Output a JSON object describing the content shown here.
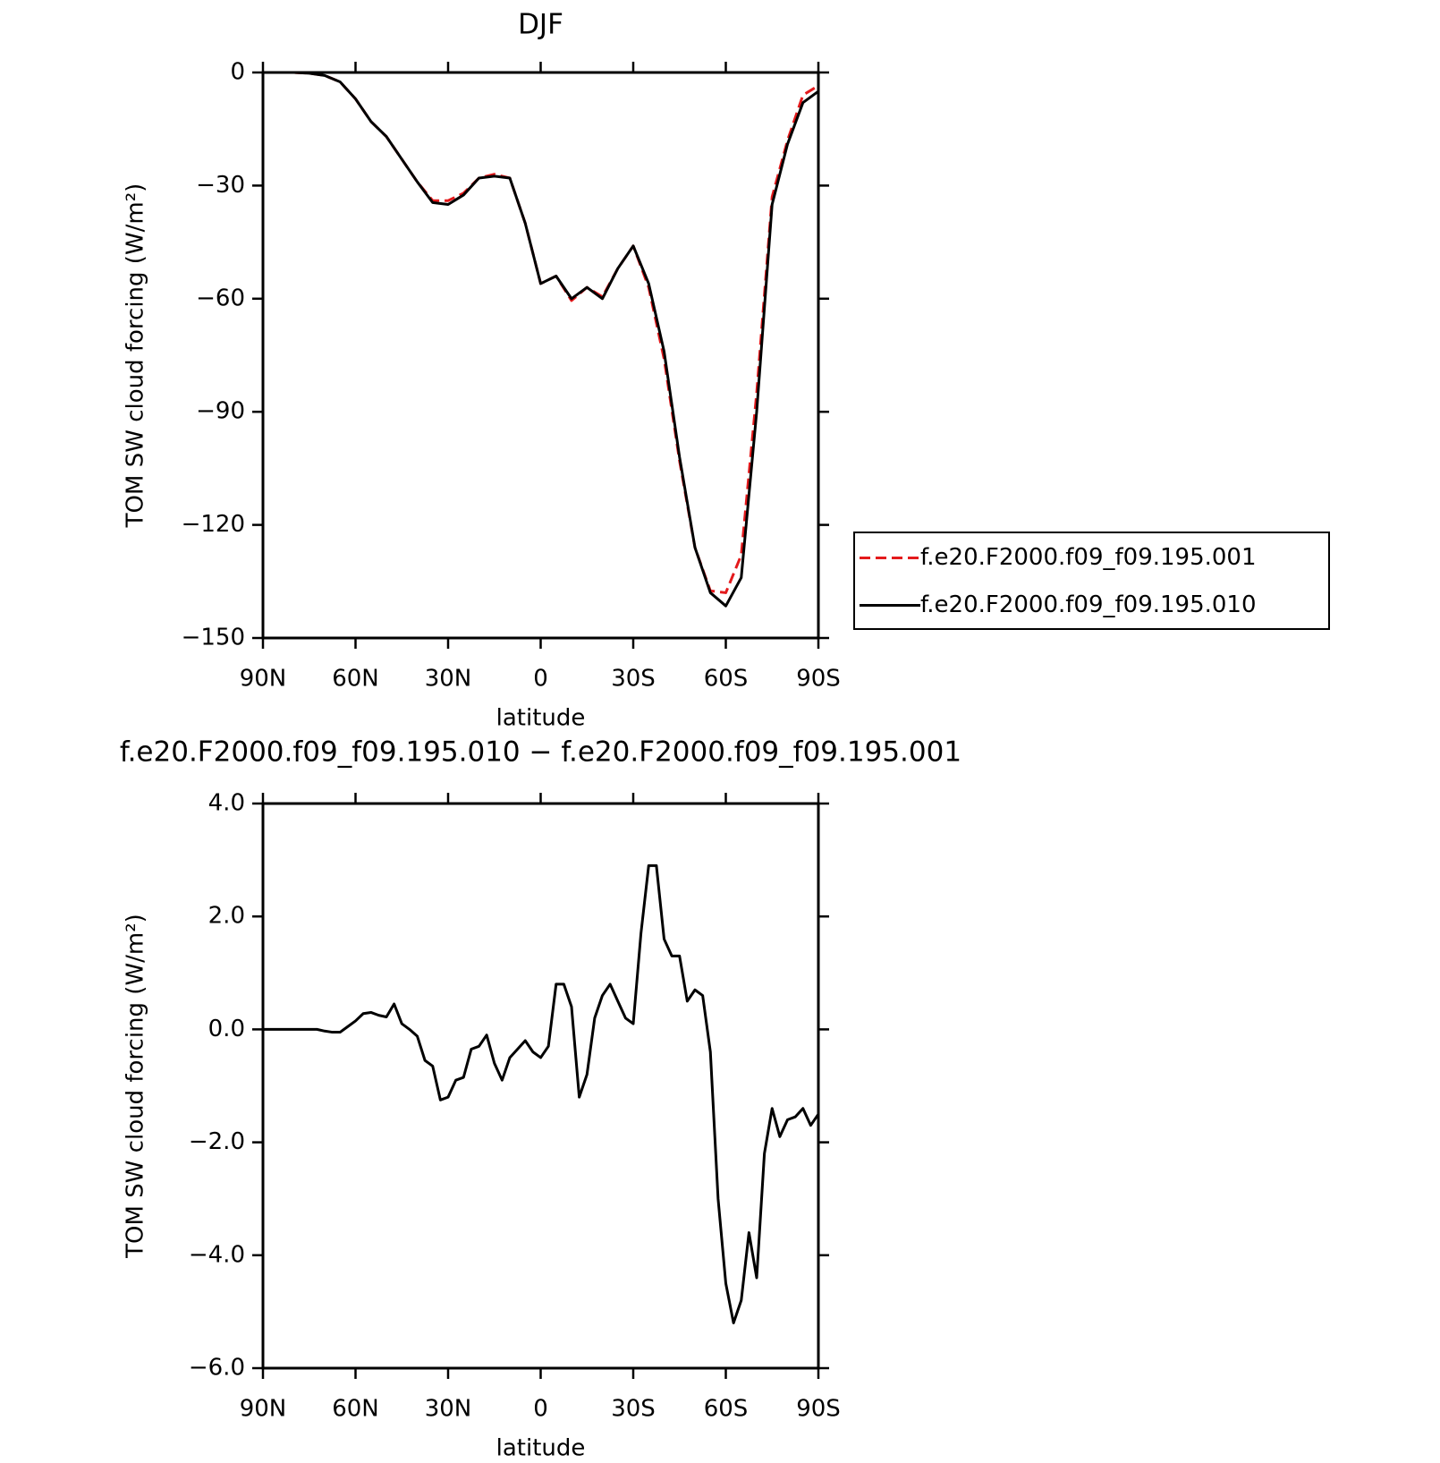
{
  "chart_data": [
    {
      "type": "line",
      "title": "DJF",
      "xlabel": "latitude",
      "ylabel": "TOM SW cloud forcing (W/m²)",
      "x": [
        90,
        85,
        80,
        75,
        70,
        65,
        60,
        55,
        50,
        45,
        40,
        35,
        30,
        25,
        20,
        15,
        10,
        5,
        0,
        -5,
        -10,
        -15,
        -20,
        -25,
        -30,
        -35,
        -40,
        -45,
        -50,
        -55,
        -60,
        -65,
        -70,
        -75,
        -80,
        -85,
        -90
      ],
      "series": [
        {
          "name": "f.e20.F2000.f09_f09.195.001",
          "color": "#e41a1c",
          "dash": true,
          "values": [
            0,
            0,
            0,
            -0.2,
            -0.8,
            -2.5,
            -7,
            -13,
            -17,
            -23,
            -29,
            -34,
            -34,
            -32,
            -28,
            -27,
            -28,
            -40,
            -56,
            -54,
            -60.5,
            -57,
            -59.5,
            -52,
            -46,
            -57,
            -76,
            -103,
            -126,
            -137.5,
            -138,
            -128,
            -85,
            -33,
            -18,
            -6,
            -3.5
          ]
        },
        {
          "name": "f.e20.F2000.f09_f09.195.010",
          "color": "#000000",
          "dash": false,
          "values": [
            0,
            0,
            0,
            -0.2,
            -0.8,
            -2.5,
            -7,
            -13,
            -17,
            -23,
            -29,
            -34.5,
            -35,
            -32.5,
            -28,
            -27.5,
            -28,
            -40,
            -56,
            -54,
            -60,
            -57,
            -60,
            -52,
            -46,
            -56,
            -74,
            -102,
            -126,
            -138,
            -141.5,
            -134,
            -90,
            -35,
            -19,
            -8,
            -5
          ]
        }
      ],
      "xlim": [
        90,
        -90
      ],
      "xticks": [
        {
          "value": 90,
          "label": "90N"
        },
        {
          "value": 60,
          "label": "60N"
        },
        {
          "value": 30,
          "label": "30N"
        },
        0,
        {
          "value": -30,
          "label": "30S"
        },
        {
          "value": -60,
          "label": "60S"
        },
        {
          "value": -90,
          "label": "90S"
        }
      ],
      "ylim": [
        -150,
        0
      ],
      "yticks": [
        0,
        {
          "value": -30,
          "label": "−30"
        },
        {
          "value": -60,
          "label": "−60"
        },
        {
          "value": -90,
          "label": "−90"
        },
        {
          "value": -120,
          "label": "−120"
        },
        {
          "value": -150,
          "label": "−150"
        }
      ],
      "legend": "right"
    },
    {
      "type": "line",
      "title": "f.e20.F2000.f09_f09.195.010 − f.e20.F2000.f09_f09.195.001",
      "xlabel": "latitude",
      "ylabel": "TOM SW cloud forcing (W/m²)",
      "x": [
        90,
        87.5,
        85,
        82.5,
        80,
        77.5,
        75,
        72.5,
        70,
        67.5,
        65,
        62.5,
        60,
        57.5,
        55,
        52.5,
        50,
        47.5,
        45,
        42.5,
        40,
        37.5,
        35,
        32.5,
        30,
        27.5,
        25,
        22.5,
        20,
        17.5,
        15,
        12.5,
        10,
        7.5,
        5,
        2.5,
        0,
        -2.5,
        -5,
        -7.5,
        -10,
        -12.5,
        -15,
        -17.5,
        -20,
        -22.5,
        -25,
        -27.5,
        -30,
        -32.5,
        -35,
        -37.5,
        -40,
        -42.5,
        -45,
        -47.5,
        -50,
        -52.5,
        -55,
        -57.5,
        -60,
        -62.5,
        -65,
        -67.5,
        -70,
        -72.5,
        -75,
        -77.5,
        -80,
        -82.5,
        -85,
        -87.5,
        -90
      ],
      "values": [
        0,
        0,
        0,
        0,
        0,
        0,
        0,
        0,
        -0.03,
        -0.05,
        -0.05,
        0.05,
        0.15,
        0.28,
        0.3,
        0.25,
        0.22,
        0.45,
        0.1,
        0,
        -0.12,
        -0.55,
        -0.65,
        -1.25,
        -1.2,
        -0.9,
        -0.85,
        -0.35,
        -0.3,
        -0.1,
        -0.6,
        -0.9,
        -0.5,
        -0.35,
        -0.2,
        -0.4,
        -0.5,
        -0.3,
        0.8,
        0.8,
        0.4,
        -1.2,
        -0.8,
        0.2,
        0.6,
        0.8,
        0.5,
        0.2,
        0.1,
        1.7,
        2.9,
        2.9,
        1.6,
        1.3,
        1.3,
        0.5,
        0.7,
        0.6,
        -0.4,
        -3,
        -4.5,
        -5.2,
        -4.8,
        -3.6,
        -4.4,
        -2.2,
        -1.4,
        -1.9,
        -1.6,
        -1.55,
        -1.4,
        -1.7,
        -1.5
      ],
      "color": "#000000",
      "xlim": [
        90,
        -90
      ],
      "xticks": [
        {
          "value": 90,
          "label": "90N"
        },
        {
          "value": 60,
          "label": "60N"
        },
        {
          "value": 30,
          "label": "30N"
        },
        0,
        {
          "value": -30,
          "label": "30S"
        },
        {
          "value": -60,
          "label": "60S"
        },
        {
          "value": -90,
          "label": "90S"
        }
      ],
      "ylim": [
        -6,
        4
      ],
      "yticks": [
        {
          "value": 4,
          "label": "4.0"
        },
        {
          "value": 2,
          "label": "2.0"
        },
        {
          "value": 0,
          "label": "0.0"
        },
        {
          "value": -2,
          "label": "−2.0"
        },
        {
          "value": -4,
          "label": "−4.0"
        },
        {
          "value": -6,
          "label": "−6.0"
        }
      ]
    }
  ]
}
